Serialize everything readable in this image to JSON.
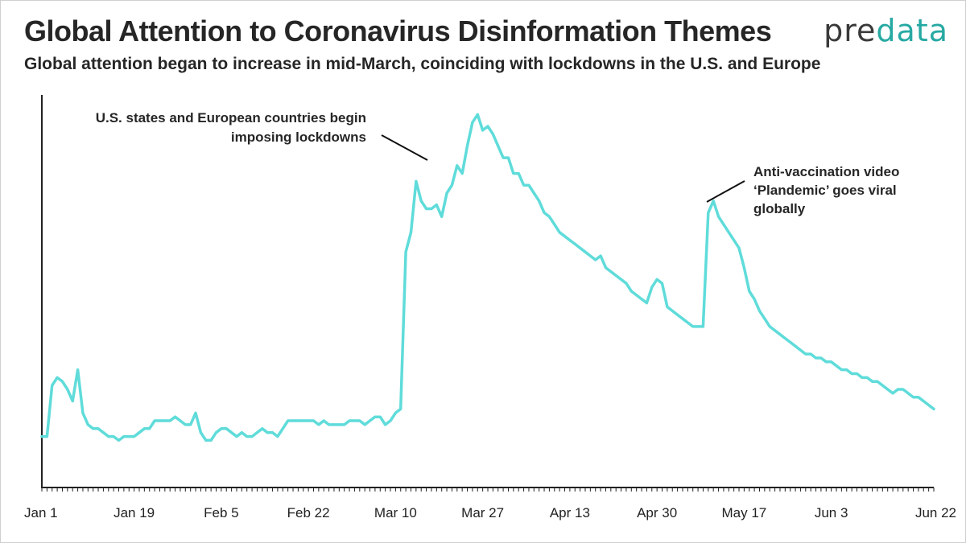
{
  "header": {
    "title": "Global Attention to Coronavirus Disinformation Themes",
    "subtitle": "Global attention began to increase in mid-March, coinciding with lockdowns in the U.S. and Europe"
  },
  "logo": {
    "part1": "pre",
    "part2": "data"
  },
  "colors": {
    "line": "#5fdcda",
    "axis": "#222222",
    "logo_accent": "#27a9a3"
  },
  "chart_data": {
    "type": "line",
    "title": "Global Attention to Coronavirus Disinformation Themes",
    "xlabel": "",
    "ylabel": "",
    "grid": false,
    "x_tick_labels": [
      "Jan 1",
      "Jan 19",
      "Feb 5",
      "Feb 22",
      "Mar 10",
      "Mar 27",
      "Apr 13",
      "Apr 30",
      "May 17",
      "Jun 3",
      "Jun 22"
    ],
    "x_tick_day_index": [
      0,
      18,
      35,
      52,
      69,
      86,
      103,
      120,
      137,
      154,
      173
    ],
    "ylim": [
      0,
      100
    ],
    "series": [
      {
        "values": [
          13,
          13,
          26,
          28,
          27,
          25,
          22,
          30,
          19,
          16,
          15,
          15,
          14,
          13,
          13,
          12,
          13,
          13,
          13,
          14,
          15,
          15,
          17,
          17,
          17,
          17,
          18,
          17,
          16,
          16,
          19,
          14,
          12,
          12,
          14,
          15,
          15,
          14,
          13,
          14,
          13,
          13,
          14,
          15,
          14,
          14,
          13,
          15,
          17,
          17,
          17,
          17,
          17,
          17,
          16,
          17,
          16,
          16,
          16,
          16,
          17,
          17,
          17,
          16,
          17,
          18,
          18,
          16,
          17,
          19,
          20,
          60,
          65,
          78,
          73,
          71,
          71,
          72,
          69,
          75,
          77,
          82,
          80,
          87,
          93,
          95,
          91,
          92,
          90,
          87,
          84,
          84,
          80,
          80,
          77,
          77,
          75,
          73,
          70,
          69,
          67,
          65,
          64,
          63,
          62,
          61,
          60,
          59,
          58,
          59,
          56,
          55,
          54,
          53,
          52,
          50,
          49,
          48,
          47,
          51,
          53,
          52,
          46,
          45,
          44,
          43,
          42,
          41,
          41,
          41,
          70,
          73,
          69,
          67,
          65,
          63,
          61,
          56,
          50,
          48,
          45,
          43,
          41,
          40,
          39,
          38,
          37,
          36,
          35,
          34,
          34,
          33,
          33,
          32,
          32,
          31,
          30,
          30,
          29,
          29,
          28,
          28,
          27,
          27,
          26,
          25,
          24,
          25,
          25,
          24,
          23,
          23,
          22,
          21,
          20
        ]
      }
    ],
    "annotations": [
      {
        "text": [
          "U.S. states and European countries begin",
          "imposing lockdowns"
        ],
        "target_day": 84
      },
      {
        "text": [
          "Anti-vaccination video",
          "‘Plandemic’ goes viral",
          "globally"
        ],
        "target_day": 128
      }
    ]
  }
}
